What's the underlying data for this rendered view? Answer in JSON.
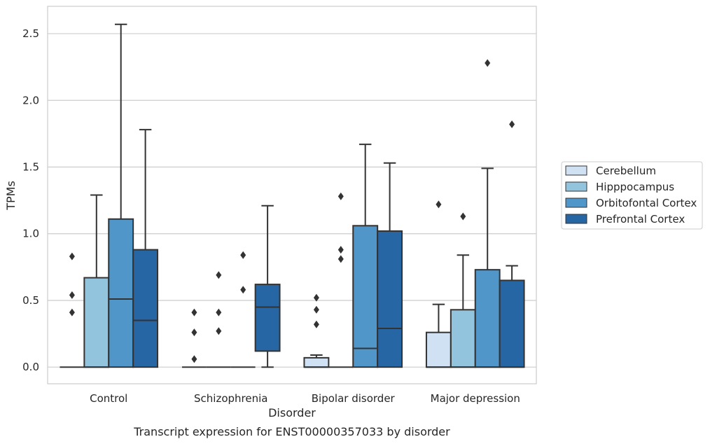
{
  "chart_data": {
    "type": "box",
    "title": "",
    "caption": "Transcript expression for ENST00000357033 by disorder",
    "xlabel": "Disorder",
    "ylabel": "TPMs",
    "ylim": [
      -0.125,
      2.705
    ],
    "yticks": [
      "0.0",
      "0.5",
      "1.0",
      "1.5",
      "2.0",
      "2.5"
    ],
    "ytick_values": [
      0,
      0.5,
      1.0,
      1.5,
      2.0,
      2.5
    ],
    "grid": "horizontal",
    "legend_position": "right",
    "categories": [
      "Control",
      "Schizophrenia",
      "Bipolar disorder",
      "Major depression"
    ],
    "series": [
      {
        "name": "Cerebellum",
        "color": "#cfe1f2",
        "boxes": [
          {
            "q1": 0,
            "median": 0,
            "q3": 0,
            "whisker_low": 0,
            "whisker_high": 0,
            "outliers": [
              0.41,
              0.54,
              0.83
            ]
          },
          {
            "q1": 0,
            "median": 0,
            "q3": 0,
            "whisker_low": 0,
            "whisker_high": 0,
            "outliers": [
              0.06,
              0.26,
              0.41
            ]
          },
          {
            "q1": 0,
            "median": 0,
            "q3": 0.07,
            "whisker_low": 0,
            "whisker_high": 0.09,
            "outliers": [
              0.32,
              0.43,
              0.52
            ]
          },
          {
            "q1": 0,
            "median": 0,
            "q3": 0.26,
            "whisker_low": 0,
            "whisker_high": 0.47,
            "outliers": [
              1.22
            ]
          }
        ]
      },
      {
        "name": "Hipppocampus",
        "color": "#93c4de",
        "boxes": [
          {
            "q1": 0,
            "median": 0,
            "q3": 0.67,
            "whisker_low": 0,
            "whisker_high": 1.29,
            "outliers": []
          },
          {
            "q1": 0,
            "median": 0,
            "q3": 0,
            "whisker_low": 0,
            "whisker_high": 0,
            "outliers": [
              0.27,
              0.41,
              0.69
            ]
          },
          {
            "q1": 0,
            "median": 0,
            "q3": 0,
            "whisker_low": 0,
            "whisker_high": 0,
            "outliers": [
              0.81,
              0.88,
              1.28
            ]
          },
          {
            "q1": 0,
            "median": 0,
            "q3": 0.43,
            "whisker_low": 0,
            "whisker_high": 0.84,
            "outliers": [
              1.13
            ]
          }
        ]
      },
      {
        "name": "Orbitofontal Cortex",
        "color": "#5096c8",
        "boxes": [
          {
            "q1": 0,
            "median": 0.51,
            "q3": 1.11,
            "whisker_low": 0,
            "whisker_high": 2.57,
            "outliers": []
          },
          {
            "q1": 0,
            "median": 0,
            "q3": 0,
            "whisker_low": 0,
            "whisker_high": 0,
            "outliers": [
              0.58,
              0.84
            ]
          },
          {
            "q1": 0,
            "median": 0.14,
            "q3": 1.06,
            "whisker_low": 0,
            "whisker_high": 1.67,
            "outliers": []
          },
          {
            "q1": 0,
            "median": 0,
            "q3": 0.73,
            "whisker_low": 0,
            "whisker_high": 1.49,
            "outliers": [
              2.28
            ]
          }
        ]
      },
      {
        "name": "Prefrontal Cortex",
        "color": "#2766a4",
        "boxes": [
          {
            "q1": 0,
            "median": 0.35,
            "q3": 0.88,
            "whisker_low": 0,
            "whisker_high": 1.78,
            "outliers": []
          },
          {
            "q1": 0.12,
            "median": 0.45,
            "q3": 0.62,
            "whisker_low": 0,
            "whisker_high": 1.21,
            "outliers": []
          },
          {
            "q1": 0,
            "median": 0.29,
            "q3": 1.02,
            "whisker_low": 0,
            "whisker_high": 1.53,
            "outliers": []
          },
          {
            "q1": 0,
            "median": 0,
            "q3": 0.65,
            "whisker_low": 0,
            "whisker_high": 0.76,
            "outliers": [
              1.82
            ]
          }
        ]
      }
    ]
  }
}
